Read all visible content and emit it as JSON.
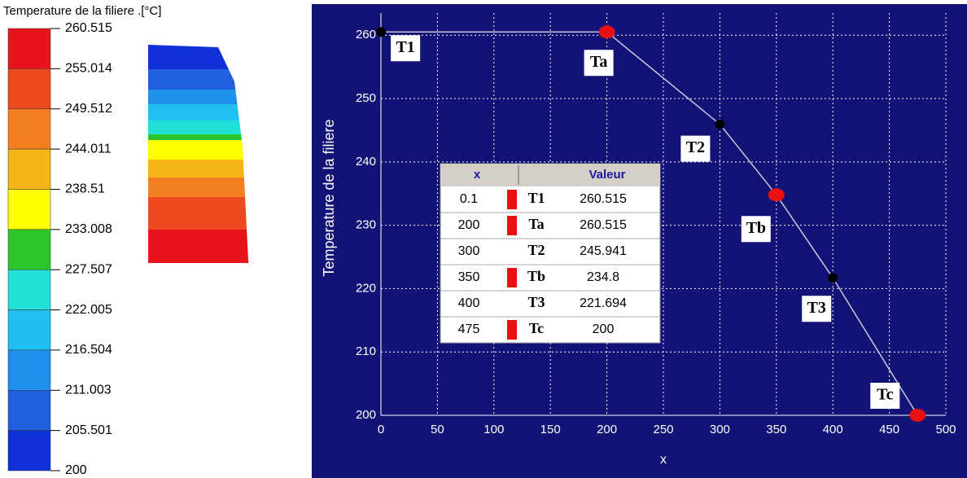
{
  "chart_data": [
    {
      "type": "colorbar",
      "title": "Temperature de la filiere .[°C]",
      "ticks": [
        260.515,
        255.014,
        249.512,
        244.011,
        238.51,
        233.008,
        227.507,
        222.005,
        216.504,
        211.003,
        205.501,
        200
      ],
      "colors": [
        "#e8141b",
        "#ee4a1f",
        "#f37f20",
        "#f5b516",
        "#ffff00",
        "#2cc62c",
        "#22e0d8",
        "#20c0f0",
        "#2090ee",
        "#2060e0",
        "#1030d8"
      ]
    },
    {
      "type": "line",
      "xlabel": "x",
      "ylabel": "Temperature de la filiere",
      "x": [
        0.1,
        200,
        300,
        350,
        400,
        475
      ],
      "series": [
        {
          "name": "Valeur",
          "color": "#c8c8d8",
          "values": [
            260.515,
            260.515,
            245.941,
            234.8,
            221.694,
            200
          ]
        }
      ],
      "point_labels": [
        "T1",
        "Ta",
        "T2",
        "Tb",
        "T3",
        "Tc"
      ],
      "marker_colors": [
        "#000000",
        "#e81010",
        "#000000",
        "#e81010",
        "#000000",
        "#e81010"
      ],
      "xlim": [
        0,
        500
      ],
      "xticks": [
        0,
        50,
        100,
        150,
        200,
        250,
        300,
        350,
        400,
        450,
        500
      ],
      "ylim": [
        200,
        263.5
      ],
      "yticks": [
        200,
        210,
        220,
        230,
        240,
        250,
        260
      ],
      "grid": true,
      "table": {
        "header": [
          "x",
          "Valeur"
        ],
        "rows": [
          [
            0.1,
            "T1",
            260.515
          ],
          [
            200,
            "Ta",
            260.515
          ],
          [
            300,
            "T2",
            245.941
          ],
          [
            350,
            "Tb",
            234.8
          ],
          [
            400,
            "T3",
            221.694
          ],
          [
            475,
            "Tc",
            200
          ]
        ]
      }
    }
  ]
}
